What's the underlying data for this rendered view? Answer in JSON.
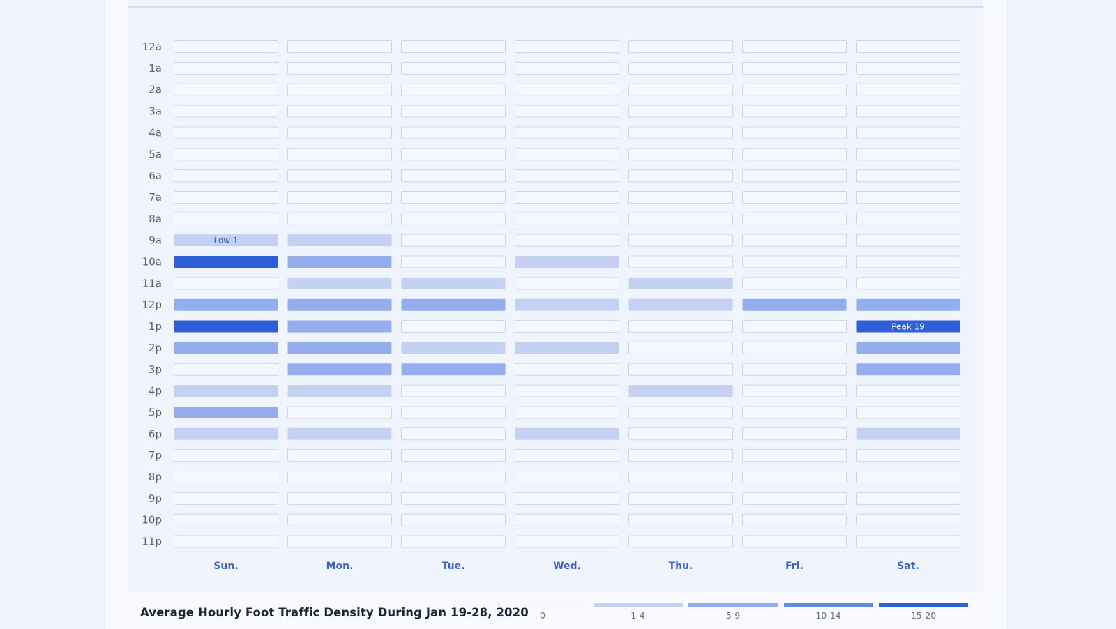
{
  "chart_data": {
    "type": "heatmap",
    "title": "Average Hourly Foot Traffic Density During Jan 19-28, 2020",
    "days": [
      "Sun.",
      "Mon.",
      "Tue.",
      "Wed.",
      "Thu.",
      "Fri.",
      "Sat."
    ],
    "hours": [
      "12a",
      "1a",
      "2a",
      "3a",
      "4a",
      "5a",
      "6a",
      "7a",
      "8a",
      "9a",
      "10a",
      "11a",
      "12p",
      "1p",
      "2p",
      "3p",
      "4p",
      "5p",
      "6p",
      "7p",
      "8p",
      "9p",
      "10p",
      "11p"
    ],
    "values_by_hour": [
      [
        0,
        0,
        0,
        0,
        0,
        0,
        0
      ],
      [
        0,
        0,
        0,
        0,
        0,
        0,
        0
      ],
      [
        0,
        0,
        0,
        0,
        0,
        0,
        0
      ],
      [
        0,
        0,
        0,
        0,
        0,
        0,
        0
      ],
      [
        0,
        0,
        0,
        0,
        0,
        0,
        0
      ],
      [
        0,
        0,
        0,
        0,
        0,
        0,
        0
      ],
      [
        0,
        0,
        0,
        0,
        0,
        0,
        0
      ],
      [
        0,
        0,
        0,
        0,
        0,
        0,
        0
      ],
      [
        0,
        0,
        0,
        0,
        0,
        0,
        0
      ],
      [
        1,
        3,
        0,
        0,
        0,
        0,
        0
      ],
      [
        17,
        7,
        0,
        3,
        0,
        0,
        0
      ],
      [
        0,
        3,
        3,
        0,
        3,
        0,
        0
      ],
      [
        7,
        7,
        7,
        3,
        3,
        7,
        7
      ],
      [
        17,
        7,
        0,
        0,
        0,
        0,
        19
      ],
      [
        7,
        7,
        3,
        3,
        0,
        0,
        7
      ],
      [
        0,
        7,
        7,
        0,
        0,
        0,
        7
      ],
      [
        3,
        3,
        0,
        0,
        3,
        0,
        0
      ],
      [
        7,
        0,
        0,
        0,
        0,
        0,
        0
      ],
      [
        3,
        3,
        0,
        3,
        0,
        0,
        3
      ],
      [
        0,
        0,
        0,
        0,
        0,
        0,
        0
      ],
      [
        0,
        0,
        0,
        0,
        0,
        0,
        0
      ],
      [
        0,
        0,
        0,
        0,
        0,
        0,
        0
      ],
      [
        0,
        0,
        0,
        0,
        0,
        0,
        0
      ],
      [
        0,
        0,
        0,
        0,
        0,
        0,
        0
      ]
    ],
    "annotations": [
      {
        "hour": "9a",
        "day": "Sun.",
        "text": "Low 1"
      },
      {
        "hour": "1p",
        "day": "Sat.",
        "text": "Peak 19"
      }
    ],
    "legend": [
      {
        "label": "0",
        "min": 0,
        "max": 0,
        "color": "#f6f8ff"
      },
      {
        "label": "1-4",
        "min": 1,
        "max": 4,
        "color": "#c4d1f3"
      },
      {
        "label": "5-9",
        "min": 5,
        "max": 9,
        "color": "#94aded"
      },
      {
        "label": "10-14",
        "min": 10,
        "max": 14,
        "color": "#6488e0"
      },
      {
        "label": "15-20",
        "min": 15,
        "max": 20,
        "color": "#2f5fd6"
      }
    ],
    "empty_border_color": "#cdd6ea",
    "legend_placement": "bottom-right",
    "grid": false
  }
}
